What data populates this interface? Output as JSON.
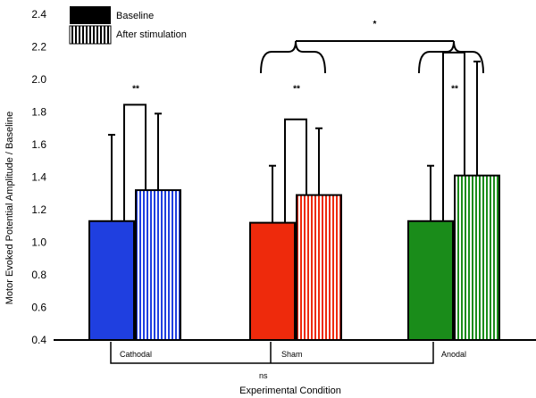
{
  "chart_data": {
    "type": "bar",
    "title": "",
    "xlabel": "Experimental Condition",
    "ylabel": "Motor Evoked Potential Amplitude / Baseline",
    "ylim": [
      0.4,
      2.4
    ],
    "yticks": [
      "0.4",
      "0.6",
      "0.8",
      "1.0",
      "1.2",
      "1.4",
      "1.6",
      "1.8",
      "2.0",
      "2.2",
      "2.4"
    ],
    "categories": [
      "Cathodal",
      "Sham",
      "Anodal"
    ],
    "series": [
      {
        "name": "Baseline",
        "pattern": "solid",
        "values": [
          1.13,
          1.12,
          1.13
        ],
        "error_upper": [
          1.66,
          1.47,
          1.47
        ]
      },
      {
        "name": "After stimulation",
        "pattern": "striped",
        "values": [
          1.32,
          1.29,
          1.41
        ],
        "error_upper": [
          1.79,
          1.7,
          2.11
        ]
      }
    ],
    "colors": {
      "Cathodal": "#1f3fe0",
      "Sham": "#ee2a0c",
      "Anodal": "#1a8c1a"
    },
    "within_condition_significance": [
      "**",
      "**",
      "**"
    ],
    "between_condition_significance": {
      "comparison": "Sham vs Anodal",
      "label": "*"
    },
    "baseline_comparison": {
      "label": "ns"
    },
    "legend": {
      "position": "top-left"
    }
  }
}
